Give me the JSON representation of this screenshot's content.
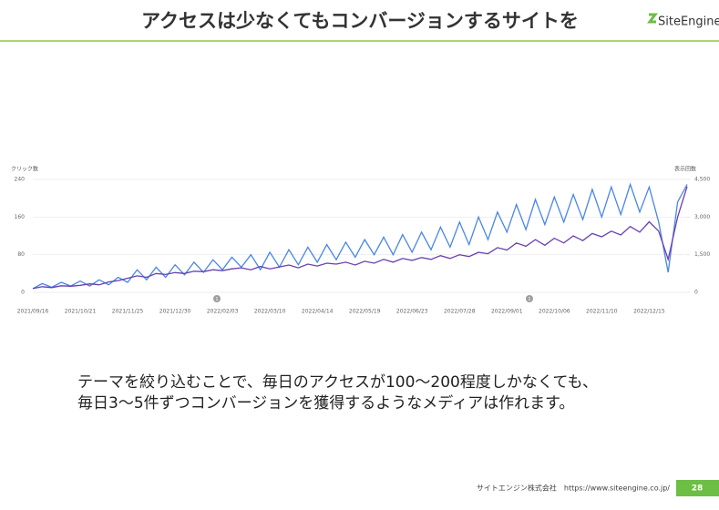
{
  "header": {
    "title": "アクセスは少なくてもコンバージョンするサイトを",
    "logo": "SiteEngine"
  },
  "chart_data": {
    "type": "line",
    "categories": [
      "2021/09/16",
      null,
      null,
      null,
      null,
      "2021/10/21",
      null,
      null,
      null,
      null,
      "2021/11/25",
      null,
      null,
      null,
      null,
      "2021/12/30",
      null,
      null,
      null,
      null,
      "2022/02/03",
      null,
      null,
      null,
      null,
      "2022/03/10",
      null,
      null,
      null,
      null,
      "2022/04/14",
      null,
      null,
      null,
      null,
      "2022/05/19",
      null,
      null,
      null,
      null,
      "2022/06/23",
      null,
      null,
      null,
      null,
      "2022/07/28",
      null,
      null,
      null,
      null,
      "2022/09/01",
      null,
      null,
      null,
      null,
      "2022/10/06",
      null,
      null,
      null,
      null,
      "2022/11/10",
      null,
      null,
      null,
      null,
      "2022/12/15",
      null,
      null,
      null,
      null
    ],
    "series": [
      {
        "name": "クリック数",
        "color": "#6a3fb0",
        "values": [
          8,
          12,
          10,
          14,
          13,
          15,
          18,
          16,
          22,
          25,
          30,
          35,
          32,
          40,
          38,
          42,
          40,
          45,
          44,
          48,
          46,
          50,
          52,
          48,
          55,
          50,
          54,
          58,
          52,
          60,
          56,
          62,
          60,
          64,
          58,
          66,
          62,
          70,
          64,
          72,
          68,
          74,
          70,
          78,
          72,
          80,
          76,
          85,
          82,
          95,
          90,
          105,
          98,
          112,
          100,
          115,
          105,
          120,
          110,
          125,
          118,
          130,
          122,
          140,
          128,
          150,
          130,
          70,
          160,
          225
        ]
      },
      {
        "name": "表示回数",
        "color": "#4a86e8",
        "axis": "y2",
        "values": [
          150,
          350,
          200,
          400,
          250,
          450,
          250,
          500,
          300,
          600,
          400,
          900,
          500,
          1000,
          600,
          1100,
          700,
          1200,
          800,
          1300,
          900,
          1400,
          1000,
          1500,
          900,
          1600,
          1000,
          1700,
          1100,
          1800,
          1200,
          1900,
          1300,
          2000,
          1400,
          2100,
          1500,
          2200,
          1500,
          2300,
          1600,
          2400,
          1700,
          2600,
          1800,
          2800,
          1900,
          3000,
          2100,
          3200,
          2400,
          3500,
          2500,
          3700,
          2700,
          3800,
          2800,
          3900,
          2900,
          4100,
          3000,
          4200,
          3100,
          4300,
          3200,
          4200,
          2800,
          800,
          3600,
          4300
        ]
      }
    ],
    "ylim": [
      0,
      240
    ],
    "yticks": [
      0,
      80,
      160,
      240
    ],
    "y2lim": [
      0,
      4500
    ],
    "y2ticks": [
      0,
      {
        "value": 1500,
        "label": "1,500"
      },
      {
        "value": 3000,
        "label": "3,000"
      },
      {
        "value": 4500,
        "label": "4,500"
      }
    ],
    "grid": true,
    "annotations": [
      "1",
      "1"
    ]
  },
  "body": [
    "テーマを絞り込むことで、毎日のアクセスが100～200程度しかなくても、",
    "毎日3～5件ずつコンバージョンを獲得するようなメディアは作れます。"
  ],
  "footer": {
    "company": "サイトエンジン株式会社　https://www.siteengine.co.jp/",
    "page": "28"
  }
}
